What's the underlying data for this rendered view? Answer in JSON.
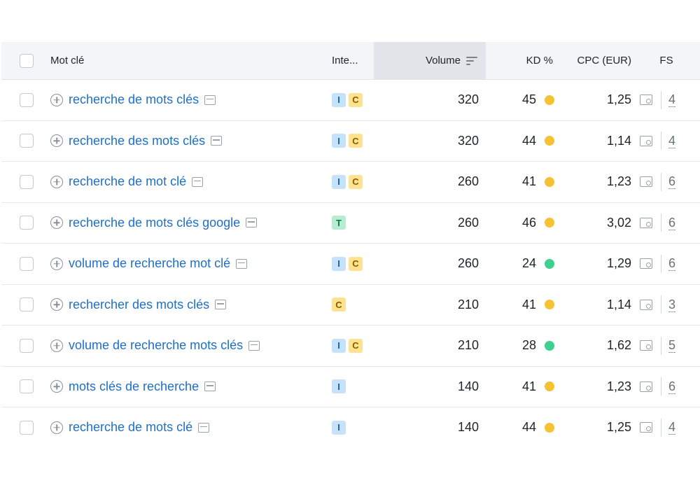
{
  "header": {
    "keyword": "Mot clé",
    "intent": "Inte...",
    "volume": "Volume",
    "kd": "KD %",
    "cpc": "CPC (EUR)",
    "fs": "FS"
  },
  "colors": {
    "kd_yellow": "#f5c236",
    "kd_green": "#3fcf8e",
    "link": "#1f6fc5"
  },
  "rows": [
    {
      "keyword": "recherche de mots clés",
      "intents": [
        "I",
        "C"
      ],
      "volume": "320",
      "kd": "45",
      "kd_level": "yellow",
      "cpc": "1,25",
      "fs": "4"
    },
    {
      "keyword": "recherche des mots clés",
      "intents": [
        "I",
        "C"
      ],
      "volume": "320",
      "kd": "44",
      "kd_level": "yellow",
      "cpc": "1,14",
      "fs": "4"
    },
    {
      "keyword": "recherche de mot clé",
      "intents": [
        "I",
        "C"
      ],
      "volume": "260",
      "kd": "41",
      "kd_level": "yellow",
      "cpc": "1,23",
      "fs": "6"
    },
    {
      "keyword": "recherche de mots clés google",
      "intents": [
        "T"
      ],
      "volume": "260",
      "kd": "46",
      "kd_level": "yellow",
      "cpc": "3,02",
      "fs": "6"
    },
    {
      "keyword": "volume de recherche mot clé",
      "intents": [
        "I",
        "C"
      ],
      "volume": "260",
      "kd": "24",
      "kd_level": "green",
      "cpc": "1,29",
      "fs": "6"
    },
    {
      "keyword": "rechercher des mots clés",
      "intents": [
        "C"
      ],
      "volume": "210",
      "kd": "41",
      "kd_level": "yellow",
      "cpc": "1,14",
      "fs": "3"
    },
    {
      "keyword": "volume de recherche mots clés",
      "intents": [
        "I",
        "C"
      ],
      "volume": "210",
      "kd": "28",
      "kd_level": "green",
      "cpc": "1,62",
      "fs": "5"
    },
    {
      "keyword": "mots clés de recherche",
      "intents": [
        "I"
      ],
      "volume": "140",
      "kd": "41",
      "kd_level": "yellow",
      "cpc": "1,23",
      "fs": "6"
    },
    {
      "keyword": "recherche de mots clé",
      "intents": [
        "I"
      ],
      "volume": "140",
      "kd": "44",
      "kd_level": "yellow",
      "cpc": "1,25",
      "fs": "4"
    }
  ]
}
